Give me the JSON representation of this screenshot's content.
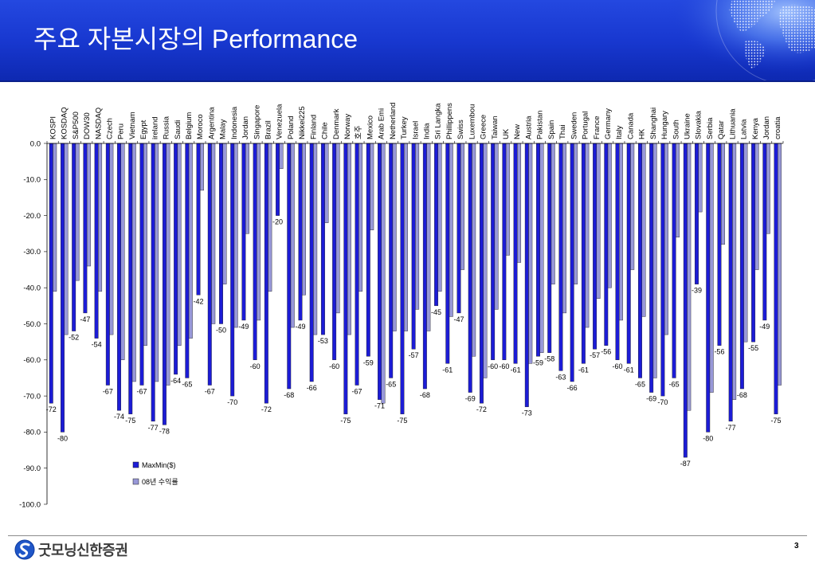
{
  "slide": {
    "title": "주요 자본시장의 Performance",
    "decoration_icon": "globe-icon",
    "header_color": "#1838d0",
    "page_number": "3"
  },
  "logo": {
    "text": "굿모닝신한증권",
    "icon": "shinhan-s-emblem-icon",
    "color": "#1f56c8"
  },
  "chart_data": {
    "type": "bar",
    "orientation": "vertical",
    "category_axis_position": "top",
    "categories": [
      "KOSPI",
      "KOSDAQ",
      "S&P500",
      "DOW30",
      "NASDAQ",
      "Czech",
      "Peru",
      "Vietnam",
      "Egypt",
      "ireland",
      "Russia",
      "Saudi",
      "Belgium",
      "Moroco",
      "Argentina",
      "Malay",
      "Indonesia",
      "Jordan",
      "Singapore",
      "Brazil",
      "Venezuela",
      "Poland",
      "Nikkei225",
      "Finland",
      "Chile",
      "Denmark",
      "Norway",
      "호주",
      "Mexico",
      "Arab Emi",
      "Netherland",
      "Turkey",
      "Israel",
      "India",
      "Sri Langka",
      "Phillippens",
      "Swiss",
      "Luxembou",
      "Greece",
      "Taiwan",
      "UK",
      "New",
      "Austria",
      "Pakistan",
      "Spain",
      "Thai",
      "Sweden",
      "Portugal",
      "France",
      "Germany",
      "Italy",
      "Canada",
      "HK",
      "Shanghai",
      "Hungary",
      "South",
      "Ukraine",
      "Slovakia",
      "Serbia",
      "Qatar",
      "Lithuania",
      "Latvia",
      "Kenya",
      "Jordan",
      "croatia"
    ],
    "series": [
      {
        "name": "MaxMin($)",
        "color": "#1c1cd6",
        "data_labels": true,
        "values": [
          -72,
          -80,
          -52,
          -47,
          -54,
          -67,
          -74,
          -75,
          -67,
          -77,
          -78,
          -64,
          -65,
          -42,
          -67,
          -50,
          -70,
          -49,
          -60,
          -72,
          -20,
          -68,
          -49,
          -66,
          -53,
          -60,
          -75,
          -67,
          -59,
          -71,
          -65,
          -75,
          -57,
          -68,
          -45,
          -61,
          -47,
          -69,
          -72,
          -60,
          -60,
          -61,
          -73,
          -59,
          -58,
          -63,
          -66,
          -61,
          -57,
          -56,
          -60,
          -61,
          -65,
          -69,
          -70,
          -65,
          -87,
          -39,
          -80,
          -56,
          -77,
          -68,
          -55,
          -49,
          -75
        ]
      },
      {
        "name": "08년 수익률",
        "color": "#9898d8",
        "data_labels": false,
        "values": [
          -41,
          -53,
          -38,
          -34,
          -41,
          -53,
          -60,
          -66,
          -56,
          -66,
          -67,
          -56,
          -54,
          -13,
          -50,
          -39,
          -51,
          -25,
          -49,
          -41,
          -7,
          -51,
          -42,
          -53,
          -22,
          -47,
          -53,
          -41,
          -24,
          -72,
          -52,
          -52,
          -46,
          -52,
          -41,
          -48,
          -35,
          -59,
          -65,
          -46,
          -31,
          -33,
          -61,
          -58,
          -39,
          -47,
          -39,
          -51,
          -43,
          -40,
          -49,
          -35,
          -48,
          -65,
          -53,
          -26,
          -74,
          -19,
          -69,
          -28,
          -71,
          -55,
          -35,
          -25,
          -67
        ]
      }
    ],
    "ylim": [
      -100,
      0
    ],
    "ytick_labels": [
      "0.0",
      "-10.0",
      "-20.0",
      "-30.0",
      "-40.0",
      "-50.0",
      "-60.0",
      "-70.0",
      "-80.0",
      "-90.0",
      "-100.0"
    ],
    "grid": false,
    "legend": "lower-left"
  }
}
